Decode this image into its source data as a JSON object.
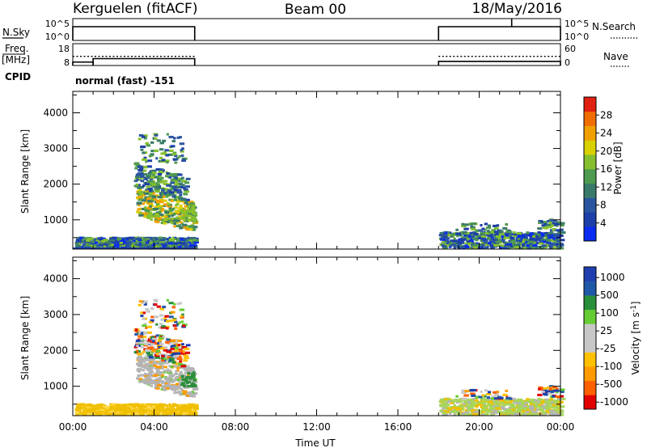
{
  "header": {
    "station": "Kerguelen (fitACF)",
    "beam": "Beam 00",
    "date": "18/May/2016"
  },
  "panel_labels": {
    "nsky": "N.Sky",
    "nsearch": "N.Search",
    "freq": "Freq.",
    "freq_unit": "[MHz]",
    "nave": "Nave",
    "cpid": "CPID",
    "mode": "normal (fast) -151"
  },
  "colors": {
    "power_scale": [
      "#0a2cf0",
      "#1d3fa8",
      "#2a55a0",
      "#3a7a6a",
      "#4e9a4e",
      "#86c02e",
      "#d8d000",
      "#f0a000",
      "#f06d00",
      "#e02010"
    ],
    "velocity_scale": [
      "#e00000",
      "#ff6000",
      "#ff9a00",
      "#ffc000",
      "#c8c8c8",
      "#c8c8c8",
      "#66cc33",
      "#2a8f3a",
      "#2058a8",
      "#1f3fb0"
    ],
    "ground_scatter": "#b4b4b4"
  },
  "chart_data": [
    {
      "type": "line",
      "name": "sky-noise-search-noise",
      "y_left_ticks": [
        "10^5",
        "10^0"
      ],
      "y_right_ticks": [
        "10^5",
        "10^0"
      ],
      "segments": [
        {
          "x_hours": [
            0.0,
            6.0
          ],
          "level": "high"
        },
        {
          "x_hours": [
            18.0,
            24.0
          ],
          "level": "high"
        }
      ],
      "spike_x_hours": 21.6
    },
    {
      "type": "line",
      "name": "frequency-nave",
      "y_left_ticks": [
        "18",
        "8"
      ],
      "y_right_ticks": [
        "60",
        "0"
      ],
      "frequency_mhz": [
        {
          "x_hours": [
            0.0,
            1.0
          ],
          "value": 10.5
        },
        {
          "x_hours": [
            1.0,
            6.0
          ],
          "value": 13.0
        },
        {
          "x_hours": [
            18.0,
            24.0
          ],
          "value": 11.0
        }
      ],
      "nave_dotted_level": 40
    },
    {
      "type": "heatmap",
      "name": "power",
      "ylabel": "Slant Range [km]",
      "y_ticks": [
        "1000",
        "2000",
        "3000",
        "4000"
      ],
      "ylim": [
        180,
        4600
      ],
      "xlim": [
        0,
        24
      ],
      "colorbar_label": "Power [dB]",
      "colorbar_ticks": [
        "4",
        "8",
        "12",
        "16",
        "20",
        "24",
        "28"
      ],
      "colorbar_range": [
        0,
        32
      ]
    },
    {
      "type": "heatmap",
      "name": "velocity",
      "ylabel": "Slant Range [km]",
      "xlabel": "Time UT",
      "x_ticks": [
        "00:00",
        "04:00",
        "08:00",
        "12:00",
        "16:00",
        "20:00",
        "00:00"
      ],
      "y_ticks": [
        "1000",
        "2000",
        "3000",
        "4000"
      ],
      "ylim": [
        180,
        4600
      ],
      "xlim": [
        0,
        24
      ],
      "colorbar_label": "Velocity [m s",
      "colorbar_label_sup": "-1",
      "colorbar_label_tail": "]",
      "colorbar_ticks": [
        "1000",
        "500",
        "100",
        "25",
        "-25",
        "-100",
        "-500",
        "-1000"
      ]
    }
  ]
}
